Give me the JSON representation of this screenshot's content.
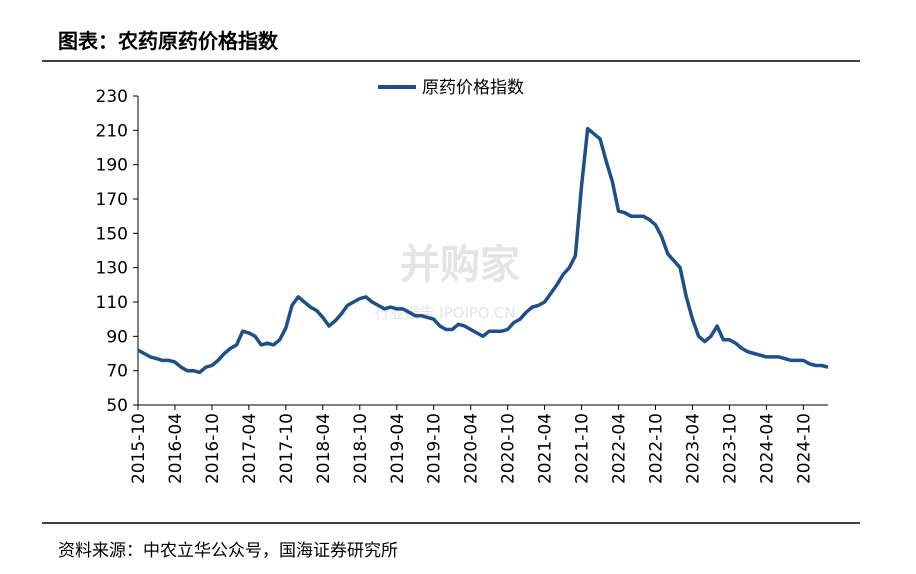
{
  "header": {
    "title": "图表：农药原药价格指数"
  },
  "chart_data": {
    "type": "line",
    "categories": [
      "2015-10",
      null,
      null,
      null,
      null,
      null,
      "2016-04",
      null,
      null,
      null,
      null,
      null,
      "2016-10",
      null,
      null,
      null,
      null,
      null,
      "2017-04",
      null,
      null,
      null,
      null,
      null,
      "2017-10",
      null,
      null,
      null,
      null,
      null,
      "2018-04",
      null,
      null,
      null,
      null,
      null,
      "2018-10",
      null,
      null,
      null,
      null,
      null,
      "2019-04",
      null,
      null,
      null,
      null,
      null,
      "2019-10",
      null,
      null,
      null,
      null,
      null,
      "2020-04",
      null,
      null,
      null,
      null,
      null,
      "2020-10",
      null,
      null,
      null,
      null,
      null,
      "2021-04",
      null,
      null,
      null,
      null,
      null,
      "2021-10",
      null,
      null,
      null,
      null,
      null,
      "2022-04",
      null,
      null,
      null,
      null,
      null,
      "2022-10",
      null,
      null,
      null,
      null,
      null,
      "2023-04",
      null,
      null,
      null,
      null,
      null,
      "2023-10",
      null,
      null,
      null,
      null,
      null,
      "2024-04",
      null,
      null,
      null,
      null,
      null,
      "2024-10",
      null,
      null,
      null,
      null
    ],
    "series": [
      {
        "name": "原药价格指数",
        "color": "#1f4e8c",
        "values": [
          82,
          80,
          78,
          77,
          76,
          76,
          75,
          72,
          70,
          70,
          69,
          72,
          73,
          76,
          80,
          83,
          85,
          93,
          92,
          90,
          85,
          86,
          85,
          88,
          95,
          108,
          113,
          110,
          107,
          105,
          101,
          96,
          99,
          103,
          108,
          110,
          112,
          113,
          110,
          108,
          106,
          107,
          106,
          106,
          104,
          102,
          102,
          101,
          100,
          96,
          94,
          94,
          97,
          96,
          94,
          92,
          90,
          93,
          93,
          93,
          94,
          98,
          100,
          104,
          107,
          108,
          110,
          115,
          120,
          126,
          130,
          137,
          178,
          211,
          208,
          205,
          192,
          180,
          163,
          162,
          160,
          160,
          160,
          158,
          155,
          148,
          138,
          134,
          130,
          113,
          100,
          90,
          87,
          90,
          96,
          88,
          88,
          86,
          83,
          81,
          80,
          79,
          78,
          78,
          78,
          77,
          76,
          76,
          76,
          74,
          73,
          73,
          72
        ]
      }
    ],
    "ylim": [
      50,
      230
    ],
    "yticks": [
      50,
      70,
      90,
      110,
      130,
      150,
      170,
      190,
      210,
      230
    ],
    "legend": "top",
    "watermark": [
      "并购家",
      "行业报告 IPOIPO.CN"
    ]
  },
  "footer": {
    "source": "资料来源：中农立华公众号，国海证券研究所"
  }
}
